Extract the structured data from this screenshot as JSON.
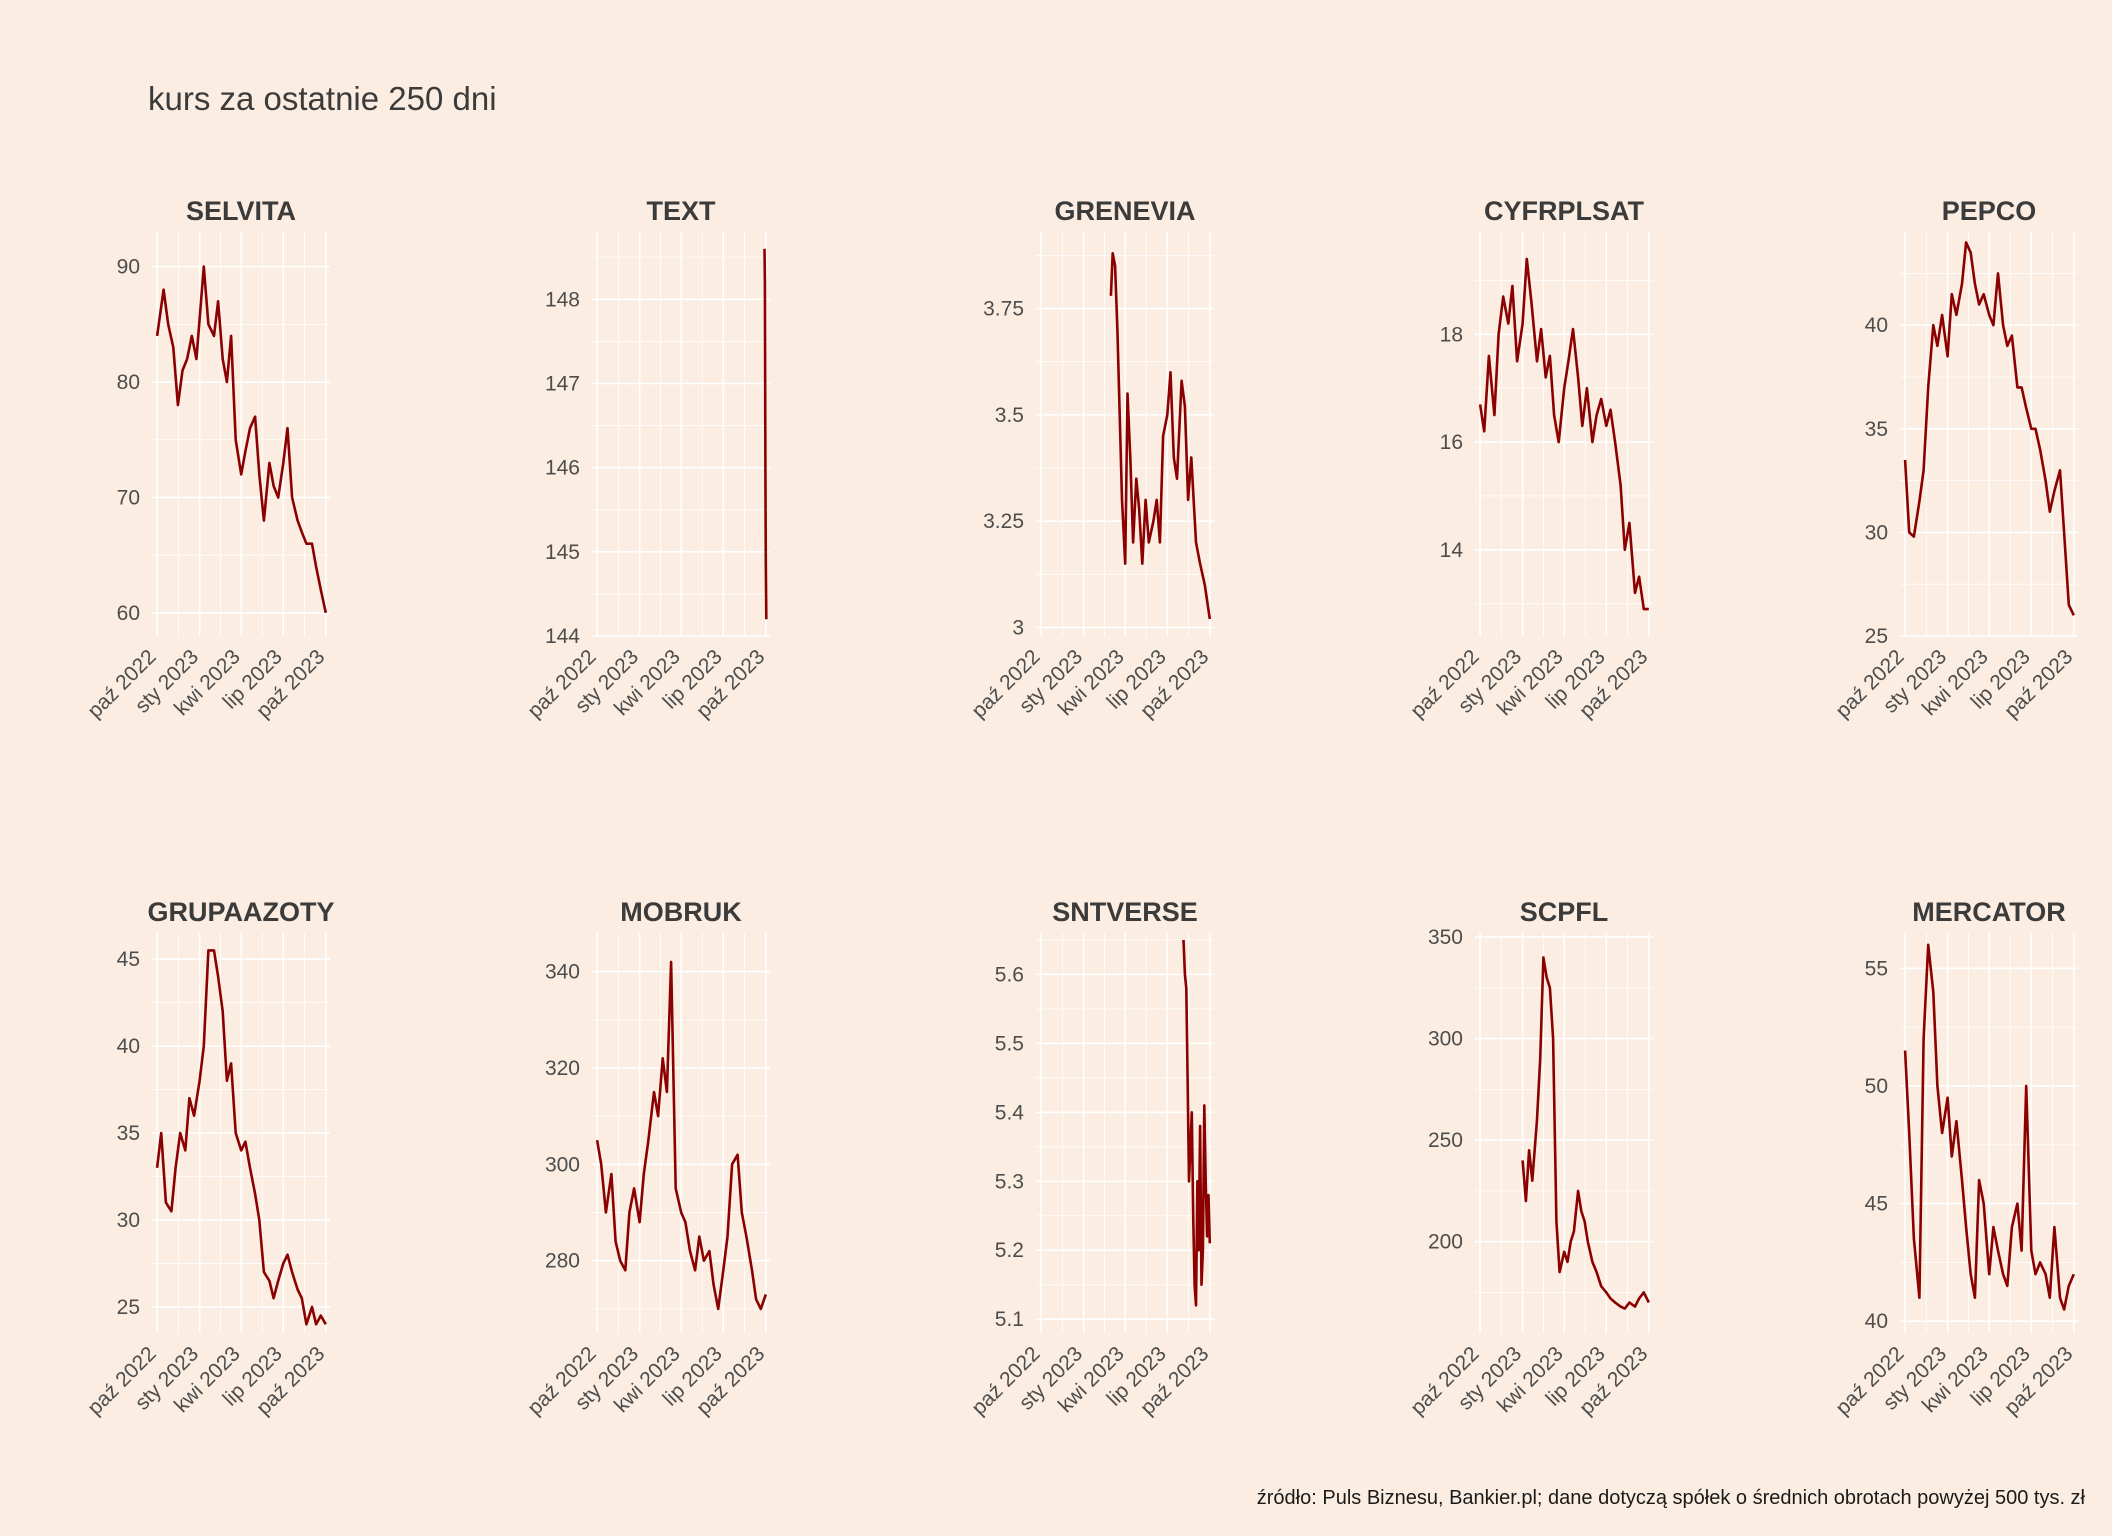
{
  "title": "kurs za ostatnie 250 dni",
  "caption": "źródło: Puls Biznesu, Bankier.pl; dane dotyczą spółek o średnich obrotach powyżej 500 tys. zł",
  "colors": {
    "background": "#fbede1",
    "line": "#8b0000",
    "grid": "#ffffff"
  },
  "x_tick_labels": [
    "paź 2022",
    "sty 2023",
    "kwi 2023",
    "lip 2023",
    "paź 2023"
  ],
  "chart_data": [
    {
      "type": "line",
      "name": "SELVITA",
      "xlim": [
        "2022-09-20",
        "2023-10-10"
      ],
      "ylim": [
        58,
        93
      ],
      "yticks": [
        60,
        70,
        80,
        90
      ],
      "x": [
        "2022-10-01",
        "2022-10-15",
        "2022-10-25",
        "2022-11-05",
        "2022-11-15",
        "2022-11-25",
        "2022-12-05",
        "2022-12-15",
        "2022-12-25",
        "2023-01-02",
        "2023-01-10",
        "2023-01-20",
        "2023-02-01",
        "2023-02-10",
        "2023-02-20",
        "2023-03-01",
        "2023-03-10",
        "2023-03-20",
        "2023-04-01",
        "2023-04-10",
        "2023-04-20",
        "2023-05-01",
        "2023-05-10",
        "2023-05-20",
        "2023-06-01",
        "2023-06-10",
        "2023-06-20",
        "2023-07-01",
        "2023-07-10",
        "2023-07-20",
        "2023-08-01",
        "2023-08-10",
        "2023-08-20",
        "2023-09-01",
        "2023-09-10",
        "2023-09-20",
        "2023-10-01"
      ],
      "y": [
        84,
        88,
        85,
        83,
        78,
        81,
        82,
        84,
        82,
        86,
        90,
        85,
        84,
        87,
        82,
        80,
        84,
        75,
        72,
        74,
        76,
        77,
        72,
        68,
        73,
        71,
        70,
        73,
        76,
        70,
        68,
        67,
        66,
        66,
        64,
        62,
        60
      ]
    },
    {
      "type": "line",
      "name": "TEXT",
      "xlim": [
        "2022-09-20",
        "2023-10-10"
      ],
      "ylim": [
        144,
        148.8
      ],
      "yticks": [
        144,
        145,
        146,
        147,
        148
      ],
      "x": [
        "2023-09-28",
        "2023-09-29",
        "2023-09-30",
        "2023-10-01",
        "2023-10-02"
      ],
      "y": [
        148.6,
        148.2,
        146.0,
        144.9,
        144.2
      ]
    },
    {
      "type": "line",
      "name": "GRENEVIA",
      "xlim": [
        "2022-09-20",
        "2023-10-10"
      ],
      "ylim": [
        2.98,
        3.93
      ],
      "yticks": [
        3.0,
        3.25,
        3.5,
        3.75
      ],
      "x": [
        "2023-03-01",
        "2023-03-05",
        "2023-03-10",
        "2023-03-15",
        "2023-03-20",
        "2023-03-25",
        "2023-04-01",
        "2023-04-06",
        "2023-04-12",
        "2023-04-18",
        "2023-04-25",
        "2023-05-01",
        "2023-05-08",
        "2023-05-15",
        "2023-05-22",
        "2023-06-01",
        "2023-06-08",
        "2023-06-15",
        "2023-06-22",
        "2023-07-01",
        "2023-07-08",
        "2023-07-15",
        "2023-07-22",
        "2023-08-01",
        "2023-08-08",
        "2023-08-15",
        "2023-08-22",
        "2023-09-01",
        "2023-09-10",
        "2023-09-20",
        "2023-10-01"
      ],
      "y": [
        3.78,
        3.88,
        3.85,
        3.7,
        3.5,
        3.3,
        3.15,
        3.55,
        3.4,
        3.2,
        3.35,
        3.28,
        3.15,
        3.3,
        3.2,
        3.25,
        3.3,
        3.2,
        3.45,
        3.5,
        3.6,
        3.4,
        3.35,
        3.58,
        3.52,
        3.3,
        3.4,
        3.2,
        3.15,
        3.1,
        3.02
      ]
    },
    {
      "type": "line",
      "name": "CYFRPLSAT",
      "xlim": [
        "2022-09-20",
        "2023-10-10"
      ],
      "ylim": [
        12.4,
        19.9
      ],
      "yticks": [
        14,
        16,
        18
      ],
      "x": [
        "2022-10-01",
        "2022-10-10",
        "2022-10-20",
        "2022-11-01",
        "2022-11-10",
        "2022-11-20",
        "2022-12-01",
        "2022-12-10",
        "2022-12-20",
        "2023-01-01",
        "2023-01-10",
        "2023-01-20",
        "2023-02-01",
        "2023-02-10",
        "2023-02-20",
        "2023-03-01",
        "2023-03-10",
        "2023-03-20",
        "2023-04-01",
        "2023-04-10",
        "2023-04-20",
        "2023-05-01",
        "2023-05-10",
        "2023-05-20",
        "2023-06-01",
        "2023-06-10",
        "2023-06-20",
        "2023-07-01",
        "2023-07-10",
        "2023-07-20",
        "2023-08-01",
        "2023-08-10",
        "2023-08-20",
        "2023-09-01",
        "2023-09-10",
        "2023-09-20",
        "2023-10-01"
      ],
      "y": [
        16.7,
        16.2,
        17.6,
        16.5,
        18.0,
        18.7,
        18.2,
        18.9,
        17.5,
        18.2,
        19.4,
        18.6,
        17.5,
        18.1,
        17.2,
        17.6,
        16.5,
        16.0,
        17.0,
        17.5,
        18.1,
        17.2,
        16.3,
        17.0,
        16.0,
        16.5,
        16.8,
        16.3,
        16.6,
        16.0,
        15.2,
        14.0,
        14.5,
        13.2,
        13.5,
        12.9,
        12.9
      ]
    },
    {
      "type": "line",
      "name": "PEPCO",
      "xlim": [
        "2022-09-20",
        "2023-10-10"
      ],
      "ylim": [
        25,
        44.5
      ],
      "yticks": [
        25,
        30,
        35,
        40
      ],
      "x": [
        "2022-10-01",
        "2022-10-10",
        "2022-10-20",
        "2022-11-01",
        "2022-11-10",
        "2022-11-20",
        "2022-12-01",
        "2022-12-10",
        "2022-12-20",
        "2023-01-01",
        "2023-01-10",
        "2023-01-20",
        "2023-02-01",
        "2023-02-10",
        "2023-02-20",
        "2023-03-01",
        "2023-03-10",
        "2023-03-20",
        "2023-04-01",
        "2023-04-10",
        "2023-04-20",
        "2023-05-01",
        "2023-05-10",
        "2023-05-20",
        "2023-06-01",
        "2023-06-10",
        "2023-06-20",
        "2023-07-01",
        "2023-07-10",
        "2023-07-20",
        "2023-08-01",
        "2023-08-10",
        "2023-08-20",
        "2023-09-01",
        "2023-09-10",
        "2023-09-20",
        "2023-10-01"
      ],
      "y": [
        33.5,
        30.0,
        29.8,
        31.5,
        33.0,
        37.0,
        40.0,
        39.0,
        40.5,
        38.5,
        41.5,
        40.5,
        42.0,
        44.0,
        43.5,
        42.0,
        41.0,
        41.5,
        40.5,
        40.0,
        42.5,
        40.0,
        39.0,
        39.5,
        37.0,
        37.0,
        36.0,
        35.0,
        35.0,
        34.0,
        32.5,
        31.0,
        32.0,
        33.0,
        30.0,
        26.5,
        26.0
      ]
    },
    {
      "type": "line",
      "name": "GRUPAAZOTY",
      "xlim": [
        "2022-09-20",
        "2023-10-10"
      ],
      "ylim": [
        23.5,
        46.5
      ],
      "yticks": [
        25,
        30,
        35,
        40,
        45
      ],
      "x": [
        "2022-10-01",
        "2022-10-10",
        "2022-10-20",
        "2022-11-01",
        "2022-11-10",
        "2022-11-20",
        "2022-12-01",
        "2022-12-10",
        "2022-12-20",
        "2023-01-01",
        "2023-01-10",
        "2023-01-20",
        "2023-02-01",
        "2023-02-10",
        "2023-02-20",
        "2023-03-01",
        "2023-03-10",
        "2023-03-20",
        "2023-04-01",
        "2023-04-10",
        "2023-04-20",
        "2023-05-01",
        "2023-05-10",
        "2023-05-20",
        "2023-06-01",
        "2023-06-10",
        "2023-06-20",
        "2023-07-01",
        "2023-07-10",
        "2023-07-20",
        "2023-08-01",
        "2023-08-10",
        "2023-08-20",
        "2023-09-01",
        "2023-09-10",
        "2023-09-20",
        "2023-10-01"
      ],
      "y": [
        33.0,
        35.0,
        31.0,
        30.5,
        33.0,
        35.0,
        34.0,
        37.0,
        36.0,
        38.0,
        40.0,
        45.5,
        45.5,
        44.0,
        42.0,
        38.0,
        39.0,
        35.0,
        34.0,
        34.5,
        33.0,
        31.5,
        30.0,
        27.0,
        26.5,
        25.5,
        26.5,
        27.5,
        28.0,
        27.0,
        26.0,
        25.5,
        24.0,
        25.0,
        24.0,
        24.5,
        24.0
      ]
    },
    {
      "type": "line",
      "name": "MOBRUK",
      "xlim": [
        "2022-09-20",
        "2023-10-10"
      ],
      "ylim": [
        265,
        348
      ],
      "yticks": [
        280,
        300,
        320,
        340
      ],
      "x": [
        "2022-10-01",
        "2022-10-10",
        "2022-10-20",
        "2022-11-01",
        "2022-11-10",
        "2022-11-20",
        "2022-12-01",
        "2022-12-10",
        "2022-12-20",
        "2023-01-01",
        "2023-01-10",
        "2023-01-20",
        "2023-02-01",
        "2023-02-10",
        "2023-02-20",
        "2023-03-01",
        "2023-03-10",
        "2023-03-20",
        "2023-04-01",
        "2023-04-10",
        "2023-04-20",
        "2023-05-01",
        "2023-05-10",
        "2023-05-20",
        "2023-06-01",
        "2023-06-10",
        "2023-06-20",
        "2023-07-01",
        "2023-07-10",
        "2023-07-20",
        "2023-08-01",
        "2023-08-10",
        "2023-08-20",
        "2023-09-01",
        "2023-09-10",
        "2023-09-20",
        "2023-10-01"
      ],
      "y": [
        305,
        300,
        290,
        298,
        284,
        280,
        278,
        290,
        295,
        288,
        298,
        305,
        315,
        310,
        322,
        315,
        342,
        295,
        290,
        288,
        282,
        278,
        285,
        280,
        282,
        275,
        270,
        278,
        285,
        300,
        302,
        290,
        285,
        278,
        272,
        270,
        273
      ]
    },
    {
      "type": "line",
      "name": "SNTVERSE",
      "xlim": [
        "2022-09-20",
        "2023-10-10"
      ],
      "ylim": [
        5.08,
        5.66
      ],
      "yticks": [
        5.1,
        5.2,
        5.3,
        5.4,
        5.5,
        5.6
      ],
      "x": [
        "2023-08-05",
        "2023-08-08",
        "2023-08-11",
        "2023-08-14",
        "2023-08-17",
        "2023-08-20",
        "2023-08-23",
        "2023-08-26",
        "2023-08-29",
        "2023-09-01",
        "2023-09-04",
        "2023-09-07",
        "2023-09-10",
        "2023-09-13",
        "2023-09-16",
        "2023-09-19",
        "2023-09-22",
        "2023-09-25",
        "2023-09-28",
        "2023-10-01"
      ],
      "y": [
        5.65,
        5.6,
        5.58,
        5.45,
        5.3,
        5.35,
        5.4,
        5.25,
        5.15,
        5.12,
        5.3,
        5.2,
        5.38,
        5.15,
        5.2,
        5.41,
        5.3,
        5.22,
        5.28,
        5.21
      ]
    },
    {
      "type": "line",
      "name": "SCPFL",
      "xlim": [
        "2022-09-20",
        "2023-10-10"
      ],
      "ylim": [
        155,
        352
      ],
      "yticks": [
        200,
        250,
        300,
        350
      ],
      "x": [
        "2023-01-01",
        "2023-01-08",
        "2023-01-15",
        "2023-01-22",
        "2023-02-01",
        "2023-02-08",
        "2023-02-15",
        "2023-02-22",
        "2023-03-01",
        "2023-03-08",
        "2023-03-15",
        "2023-03-22",
        "2023-04-01",
        "2023-04-08",
        "2023-04-15",
        "2023-04-22",
        "2023-05-01",
        "2023-05-08",
        "2023-05-15",
        "2023-05-22",
        "2023-06-01",
        "2023-06-10",
        "2023-06-20",
        "2023-07-01",
        "2023-07-10",
        "2023-07-20",
        "2023-08-01",
        "2023-08-10",
        "2023-08-20",
        "2023-09-01",
        "2023-09-10",
        "2023-09-20",
        "2023-10-01"
      ],
      "y": [
        240,
        220,
        245,
        230,
        260,
        290,
        340,
        330,
        325,
        300,
        210,
        185,
        195,
        190,
        200,
        205,
        225,
        215,
        210,
        200,
        190,
        185,
        178,
        175,
        172,
        170,
        168,
        167,
        170,
        168,
        172,
        175,
        170
      ]
    },
    {
      "type": "line",
      "name": "MERCATOR",
      "xlim": [
        "2022-09-20",
        "2023-10-10"
      ],
      "ylim": [
        39.5,
        56.5
      ],
      "yticks": [
        40,
        45,
        50,
        55
      ],
      "x": [
        "2022-10-01",
        "2022-10-10",
        "2022-10-20",
        "2022-11-01",
        "2022-11-10",
        "2022-11-20",
        "2022-12-01",
        "2022-12-10",
        "2022-12-20",
        "2023-01-01",
        "2023-01-10",
        "2023-01-20",
        "2023-02-01",
        "2023-02-10",
        "2023-02-20",
        "2023-03-01",
        "2023-03-10",
        "2023-03-20",
        "2023-04-01",
        "2023-04-10",
        "2023-04-20",
        "2023-05-01",
        "2023-05-10",
        "2023-05-20",
        "2023-06-01",
        "2023-06-10",
        "2023-06-20",
        "2023-07-01",
        "2023-07-10",
        "2023-07-20",
        "2023-08-01",
        "2023-08-10",
        "2023-08-20",
        "2023-09-01",
        "2023-09-10",
        "2023-09-20",
        "2023-10-01"
      ],
      "y": [
        51.5,
        48.0,
        43.5,
        41.0,
        52.0,
        56.0,
        54.0,
        50.0,
        48.0,
        49.5,
        47.0,
        48.5,
        46.0,
        44.0,
        42.0,
        41.0,
        46.0,
        45.0,
        42.0,
        44.0,
        43.0,
        42.0,
        41.5,
        44.0,
        45.0,
        43.0,
        50.0,
        43.0,
        42.0,
        42.5,
        42.0,
        41.0,
        44.0,
        41.0,
        40.5,
        41.5,
        42.0
      ]
    }
  ]
}
